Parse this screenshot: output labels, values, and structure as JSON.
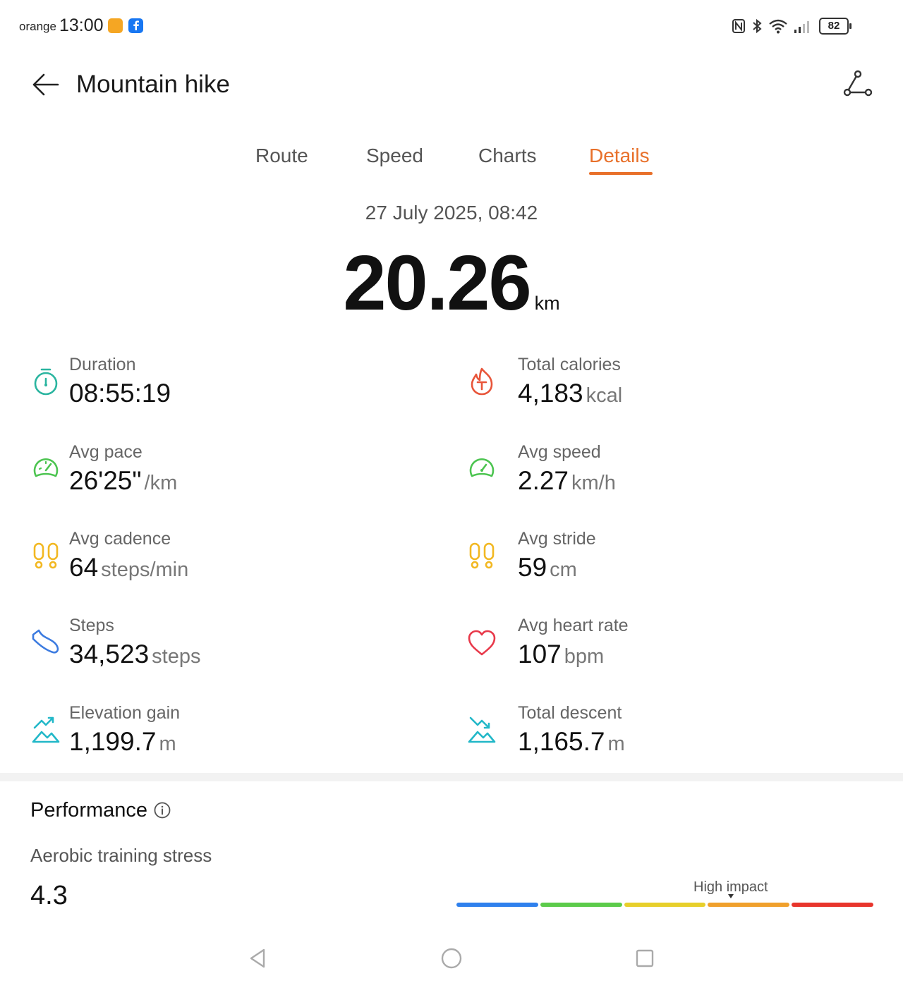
{
  "status_bar": {
    "carrier": "orange",
    "time": "13:00",
    "battery": "82"
  },
  "header": {
    "title": "Mountain hike"
  },
  "tabs": [
    {
      "label": "Route",
      "active": false
    },
    {
      "label": "Speed",
      "active": false
    },
    {
      "label": "Charts",
      "active": false
    },
    {
      "label": "Details",
      "active": true
    }
  ],
  "summary": {
    "date": "27 July 2025, 08:42",
    "distance": "20.26",
    "distance_unit": "km"
  },
  "stats": [
    {
      "label": "Duration",
      "value": "08:55:19",
      "unit": "",
      "icon": "stopwatch-icon",
      "color": "#2bb5a0"
    },
    {
      "label": "Total calories",
      "value": "4,183",
      "unit": "kcal",
      "icon": "calories-flame-icon",
      "color": "#e8553a"
    },
    {
      "label": "Avg pace",
      "value": "26'25\"",
      "unit": "/km",
      "icon": "pace-gauge-icon",
      "color": "#4cc450"
    },
    {
      "label": "Avg speed",
      "value": "2.27",
      "unit": "km/h",
      "icon": "speed-gauge-icon",
      "color": "#4cc450"
    },
    {
      "label": "Avg cadence",
      "value": "64",
      "unit": "steps/min",
      "icon": "footprints-icon",
      "color": "#f2b822"
    },
    {
      "label": "Avg stride",
      "value": "59",
      "unit": "cm",
      "icon": "footprints-icon",
      "color": "#f2b822"
    },
    {
      "label": "Steps",
      "value": "34,523",
      "unit": "steps",
      "icon": "shoe-icon",
      "color": "#3c7be0"
    },
    {
      "label": "Avg heart rate",
      "value": "107",
      "unit": "bpm",
      "icon": "heart-icon",
      "color": "#e8394a"
    },
    {
      "label": "Elevation gain",
      "value": "1,199.7",
      "unit": "m",
      "icon": "elevation-gain-icon",
      "color": "#22b8c8"
    },
    {
      "label": "Total descent",
      "value": "1,165.7",
      "unit": "m",
      "icon": "descent-icon",
      "color": "#22b8c8"
    }
  ],
  "performance": {
    "title": "Performance",
    "aerobic_label": "Aerobic training stress",
    "aerobic_value": "4.3",
    "level_label": "High impact",
    "scale_colors": [
      "#2f80ed",
      "#5ccb4a",
      "#e7cf2b",
      "#f0a02c",
      "#e8352c"
    ]
  }
}
